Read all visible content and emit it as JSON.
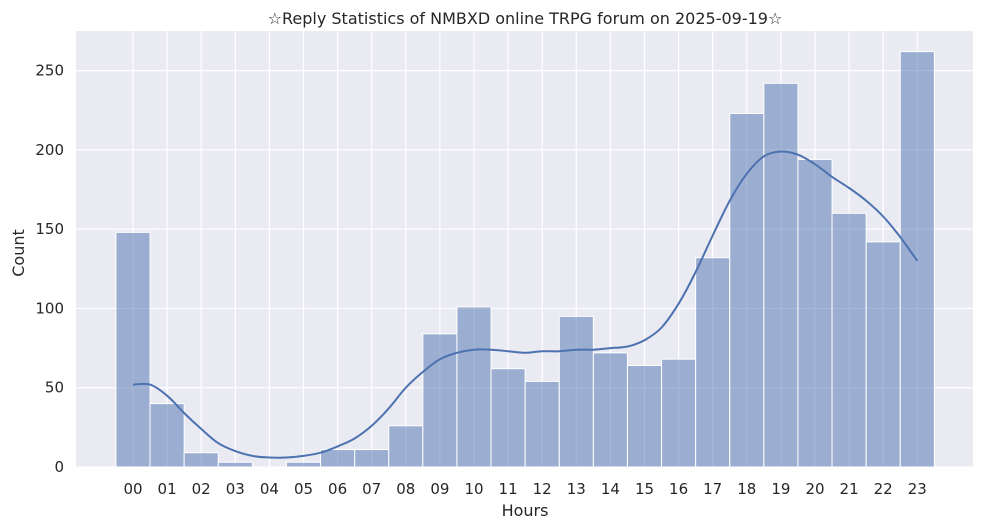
{
  "chart_data": {
    "type": "bar",
    "title": "☆Reply Statistics of NMBXD online TRPG forum on 2025-09-19☆",
    "xlabel": "Hours",
    "ylabel": "Count",
    "categories": [
      "00",
      "01",
      "02",
      "03",
      "04",
      "05",
      "06",
      "07",
      "08",
      "09",
      "10",
      "11",
      "12",
      "13",
      "14",
      "15",
      "16",
      "17",
      "18",
      "19",
      "20",
      "21",
      "22",
      "23"
    ],
    "values": [
      148,
      40,
      9,
      3,
      0,
      3,
      11,
      11,
      26,
      84,
      101,
      62,
      54,
      95,
      72,
      64,
      68,
      132,
      223,
      242,
      194,
      160,
      142,
      262
    ],
    "kde_line": {
      "x": [
        0,
        0.5,
        1,
        1.5,
        2,
        2.5,
        3,
        3.5,
        4,
        4.5,
        5,
        5.5,
        6,
        6.5,
        7,
        7.5,
        8,
        8.5,
        9,
        9.5,
        10,
        10.5,
        11,
        11.5,
        12,
        12.5,
        13,
        13.5,
        14,
        14.5,
        15,
        15.5,
        16,
        16.5,
        17,
        17.5,
        18,
        18.5,
        19,
        19.5,
        20,
        20.5,
        21,
        21.5,
        22,
        22.5,
        23
      ],
      "y": [
        52,
        52,
        45,
        34,
        24,
        15,
        10,
        7,
        6,
        6,
        7,
        9,
        13,
        18,
        26,
        37,
        50,
        60,
        68,
        72,
        74,
        74,
        73,
        72,
        73,
        73,
        74,
        74,
        75,
        76,
        80,
        88,
        103,
        123,
        146,
        168,
        185,
        196,
        199,
        197,
        191,
        183,
        176,
        168,
        158,
        145,
        130
      ]
    },
    "ylim": [
      0,
      275
    ],
    "yticks": [
      0,
      50,
      100,
      150,
      200,
      250
    ],
    "grid": true,
    "legend": "none",
    "colors": {
      "background": "#eaeaf2",
      "grid": "#ffffff",
      "bar_fill": "#4c72b0",
      "bar_opacity": "0.5",
      "line": "#4c72b0"
    }
  }
}
